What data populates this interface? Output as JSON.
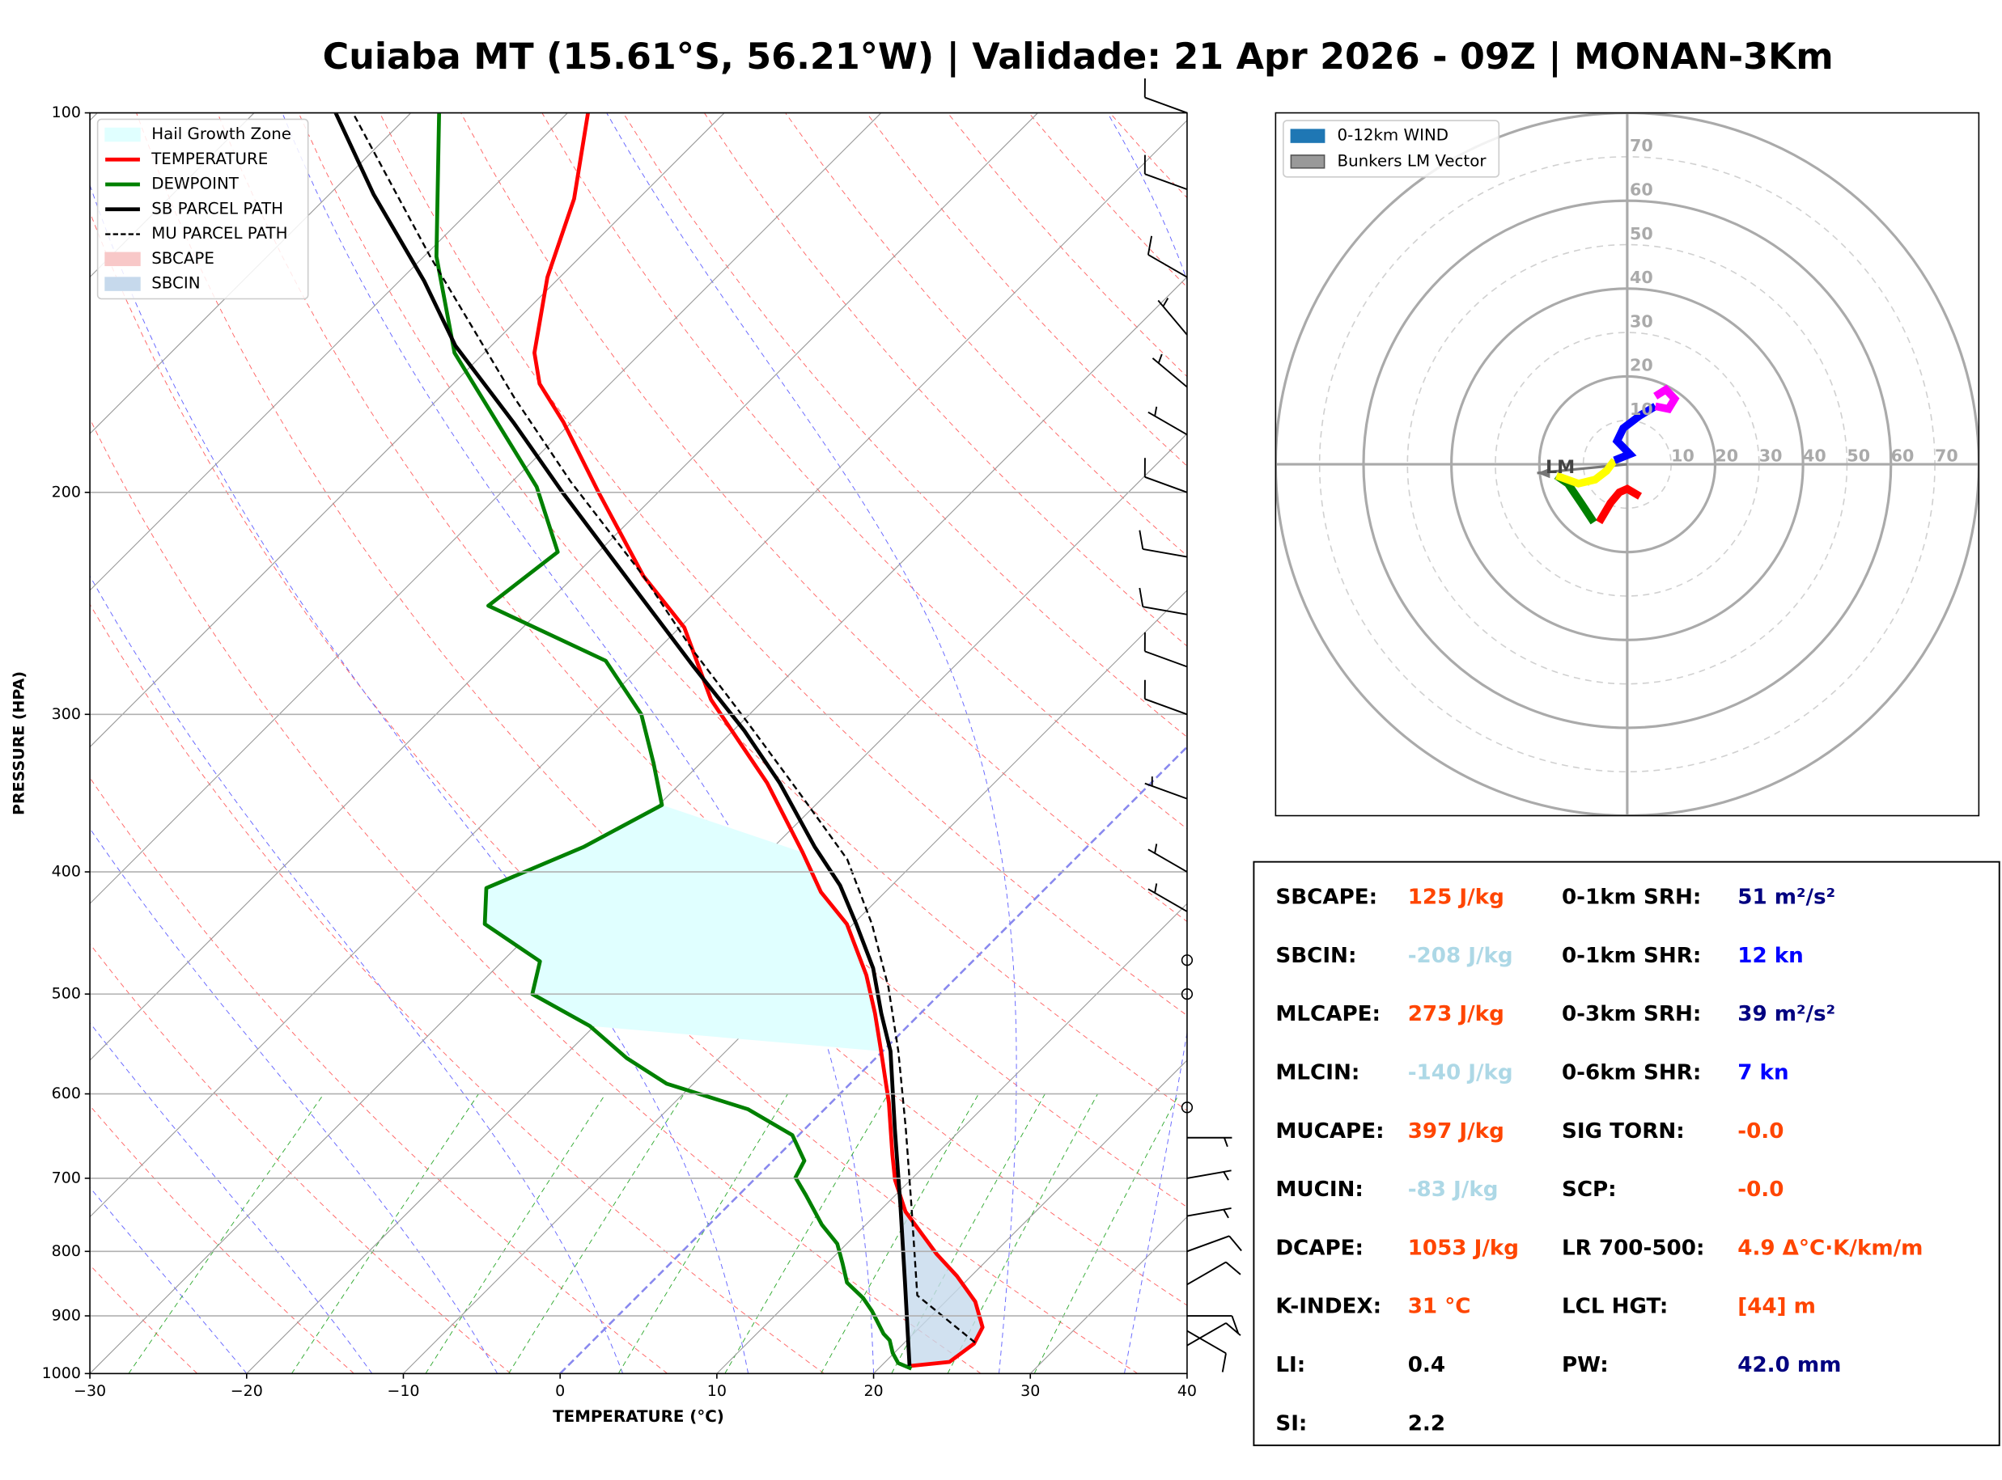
{
  "title": "Cuiaba MT (15.61°S, 56.21°W) | Validade: 21 Apr 2026 - 09Z | MONAN-3Km",
  "chart_data": [
    {
      "type": "skewt",
      "xlabel": "TEMPERATURE (°C)",
      "ylabel": "PRESSURE (HPA)",
      "xlim": [
        -30,
        40
      ],
      "xticks": [
        {
          "value": -30,
          "label": "−30"
        },
        {
          "value": -20,
          "label": "−20"
        },
        {
          "value": -10,
          "label": "−10"
        },
        0,
        10,
        20,
        30,
        40
      ],
      "ylim": [
        1000,
        100
      ],
      "yticks": [
        100,
        200,
        300,
        400,
        500,
        600,
        700,
        800,
        900,
        1000
      ],
      "log_y": true,
      "grid": true,
      "series": [
        {
          "name": "TEMPERATURE",
          "color": "#ff0000",
          "dash": false,
          "p": [
            986,
            979,
            947,
            919,
            877,
            837,
            804,
            744,
            702,
            670,
            610,
            555,
            518,
            483,
            440,
            415,
            386,
            340,
            317,
            292,
            256,
            233,
            200,
            176,
            164,
            155,
            135,
            117,
            100
          ],
          "values": [
            21.9,
            24.1,
            24.5,
            24.0,
            21.9,
            19.1,
            16.4,
            11.7,
            9.0,
            7.2,
            3.7,
            -0.1,
            -2.9,
            -5.9,
            -10.4,
            -14.1,
            -17.8,
            -24.5,
            -28.6,
            -33.4,
            -39.7,
            -45.6,
            -53.8,
            -60.5,
            -64.5,
            -66.8,
            -70.8,
            -74.1,
            -78.7
          ]
        },
        {
          "name": "DEWPOINT",
          "color": "#008000",
          "dash": false,
          "p": [
            991,
            981,
            963,
            941,
            930,
            892,
            871,
            847,
            818,
            789,
            762,
            722,
            699,
            678,
            647,
            617,
            589,
            562,
            530,
            500,
            471,
            440,
            412,
            382,
            354,
            328,
            300,
            272,
            246,
            223,
            198,
            155,
            130,
            100
          ],
          "values": [
            22.1,
            20.9,
            19.9,
            18.9,
            18.1,
            15.9,
            14.5,
            12.5,
            11.0,
            9.4,
            7.2,
            4.3,
            2.5,
            2.0,
            -0.4,
            -4.9,
            -11.7,
            -15.9,
            -20.3,
            -26.0,
            -27.6,
            -33.5,
            -35.7,
            -32.1,
            -29.8,
            -33.0,
            -36.9,
            -42.6,
            -53.6,
            -52.6,
            -58.1,
            -71.9,
            -79.2,
            -88.2
          ]
        },
        {
          "name": "SB PARCEL PATH",
          "color": "#000000",
          "dash": false,
          "p": [
            986,
            847,
            736,
            639,
            555,
            518,
            477,
            440,
            410,
            382,
            340,
            309,
            275,
            239,
            200,
            176,
            153,
            136,
            116,
            100
          ],
          "values": [
            21.8,
            16.2,
            11.0,
            5.7,
            0.5,
            -2.5,
            -5.9,
            -9.8,
            -13.3,
            -17.4,
            -23.7,
            -29.3,
            -36.6,
            -45.2,
            -56.1,
            -63.7,
            -72.3,
            -78.4,
            -87.2,
            -94.8
          ]
        },
        {
          "name": "MU PARCEL PATH",
          "color": "#000000",
          "dash": true,
          "p": [
            945,
            867,
            736,
            639,
            555,
            494,
            440,
            391,
            348,
            302,
            266,
            233,
            196,
            168,
            130,
            100
          ],
          "values": [
            24.5,
            17.8,
            11.7,
            6.4,
            1.0,
            -3.7,
            -8.8,
            -14.5,
            -21.5,
            -30.1,
            -37.9,
            -45.6,
            -56.3,
            -65.3,
            -79.6,
            -93.7
          ]
        }
      ],
      "fills": [
        {
          "name": "Hail Growth Zone",
          "color": "#e0ffff",
          "p_bottom": 555,
          "p_top": 354
        },
        {
          "name": "SBCAPE",
          "color": "#f8c8c8"
        },
        {
          "name": "SBCIN",
          "color": "#c6d9ec"
        }
      ],
      "wind_barbs": {
        "p": [
          950,
          925,
          900,
          850,
          800,
          750,
          700,
          650,
          615,
          500,
          470,
          430,
          400,
          350,
          300,
          275,
          250,
          225,
          200,
          180,
          165,
          150,
          135,
          115,
          100
        ],
        "speed": [
          10,
          10,
          10,
          10,
          10,
          5,
          5,
          5,
          0,
          0,
          0,
          5,
          5,
          5,
          10,
          10,
          10,
          10,
          10,
          5,
          5,
          5,
          10,
          10,
          10
        ],
        "direction": [
          60,
          120,
          90,
          60,
          70,
          80,
          80,
          90,
          0,
          0,
          0,
          300,
          300,
          290,
          290,
          290,
          280,
          280,
          290,
          300,
          310,
          320,
          300,
          290,
          290
        ]
      }
    },
    {
      "type": "hodograph",
      "lim": 80,
      "ticks": [
        10,
        20,
        30,
        40,
        50,
        60,
        70
      ],
      "legend": [
        {
          "name": "0-12km WIND",
          "color": "#1f77b4"
        },
        {
          "name": "Bunkers LM Vector",
          "color": "#999999"
        }
      ],
      "series": [
        {
          "color": "#ff0000",
          "u": [
            2.9,
            0,
            -1.8,
            -3.8,
            -6.4
          ],
          "v": [
            -7.3,
            -5.6,
            -6.4,
            -8.8,
            -13.2
          ]
        },
        {
          "color": "#008000",
          "u": [
            -7.6,
            -10.5,
            -13.5,
            -16.1
          ],
          "v": [
            -13.2,
            -8.8,
            -4.4,
            -2.6
          ]
        },
        {
          "color": "#ffff00",
          "u": [
            -16.1,
            -11.1,
            -7.3,
            -4.7,
            -2.9
          ],
          "v": [
            -2.6,
            -4.4,
            -3.5,
            -1.5,
            0.9
          ]
        },
        {
          "color": "#0000ff",
          "u": [
            -2.9,
            0.6,
            -2.3,
            -0.9,
            2.9,
            6.4
          ],
          "v": [
            0.9,
            2.3,
            5.3,
            8.2,
            11.1,
            13.2
          ]
        },
        {
          "color": "#ff00ff",
          "u": [
            6.4,
            9.4,
            10.8,
            8.8,
            6.4
          ],
          "v": [
            13.2,
            12.6,
            14.9,
            17.0,
            15.5
          ]
        }
      ],
      "bunkers_lm": {
        "label": "LM",
        "u": -20.5,
        "v": -2.0
      }
    }
  ],
  "indices": {
    "left": [
      {
        "label": "SBCAPE:",
        "value": "125 J/kg",
        "color": "#ff4500"
      },
      {
        "label": "SBCIN:",
        "value": "-208 J/kg",
        "color": "#add8e6"
      },
      {
        "label": "MLCAPE:",
        "value": "273 J/kg",
        "color": "#ff4500"
      },
      {
        "label": "MLCIN:",
        "value": "-140 J/kg",
        "color": "#add8e6"
      },
      {
        "label": "MUCAPE:",
        "value": "397 J/kg",
        "color": "#ff4500"
      },
      {
        "label": "MUCIN:",
        "value": "-83 J/kg",
        "color": "#add8e6"
      },
      {
        "label": "DCAPE:",
        "value": "1053 J/kg",
        "color": "#ff4500"
      },
      {
        "label": "K-INDEX:",
        "value": "31 °C",
        "color": "#ff4500"
      },
      {
        "label": "LI:",
        "value": "0.4",
        "color": "#000000"
      },
      {
        "label": "SI:",
        "value": "2.2",
        "color": "#000000"
      }
    ],
    "right": [
      {
        "label": "0-1km SRH:",
        "value": "51 m²/s²",
        "color": "#000080"
      },
      {
        "label": "0-1km SHR:",
        "value": "12 kn",
        "color": "#0000ff"
      },
      {
        "label": "0-3km SRH:",
        "value": "39 m²/s²",
        "color": "#000080"
      },
      {
        "label": "0-6km SHR:",
        "value": "7 kn",
        "color": "#0000ff"
      },
      {
        "label": "SIG TORN:",
        "value": "-0.0",
        "color": "#ff4500"
      },
      {
        "label": "SCP:",
        "value": "-0.0",
        "color": "#ff4500"
      },
      {
        "label": "LR 700-500:",
        "value": "4.9 Δ°C·K/km/m",
        "color": "#ff4500"
      },
      {
        "label": "LCL HGT:",
        "value": "[44] m",
        "color": "#ff4500"
      },
      {
        "label": "PW:",
        "value": "42.0 mm",
        "color": "#000080"
      }
    ]
  }
}
